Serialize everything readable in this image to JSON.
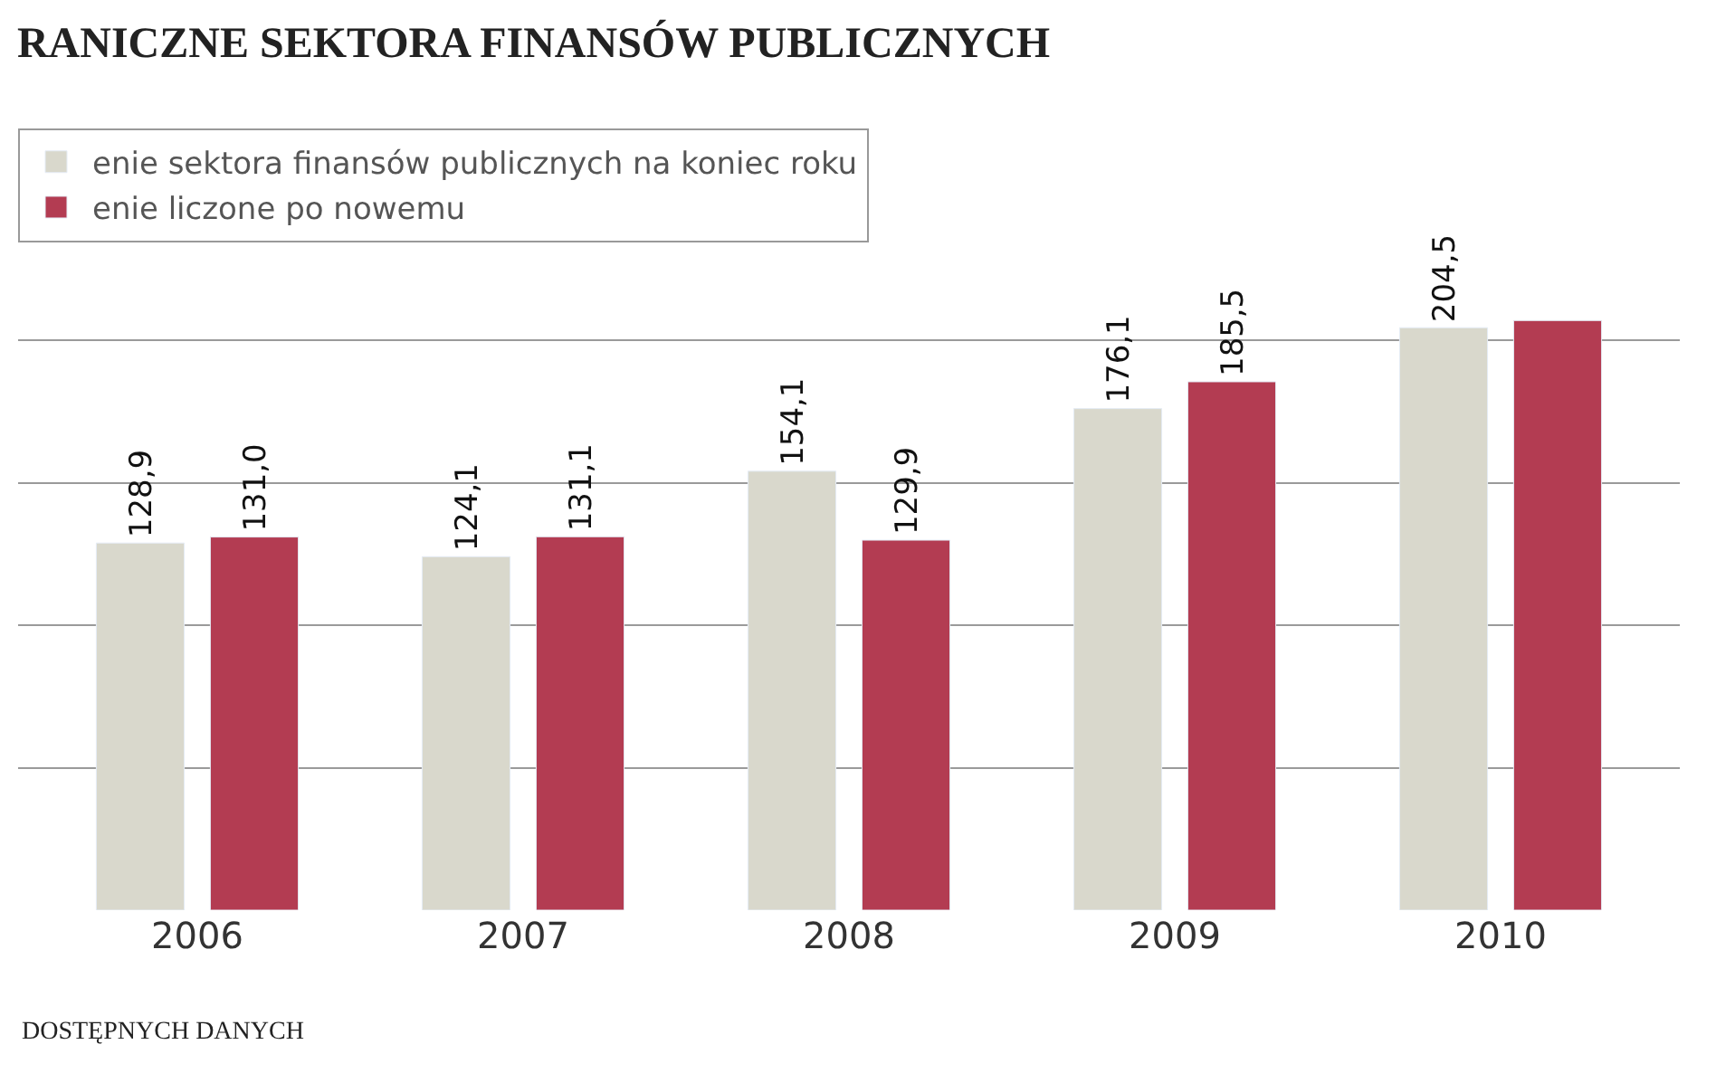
{
  "chart_data": {
    "type": "bar",
    "title": "RANICZNE SEKTORA FINANSÓW PUBLICZNYCH",
    "categories": [
      "2006",
      "2007",
      "2008",
      "2009",
      "2010"
    ],
    "series": [
      {
        "name": "enie sektora finansów publicznych na koniec roku",
        "color": "#d9d8cc",
        "values": [
          128.9,
          124.1,
          154.1,
          176.1,
          204.5
        ],
        "value_labels": [
          "128,9",
          "124,1",
          "154,1",
          "176,1",
          "204,5"
        ]
      },
      {
        "name": "enie liczone po nowemu",
        "color": "#b33c52",
        "values": [
          131.0,
          131.1,
          129.9,
          185.5,
          207
        ],
        "value_labels": [
          "131,0",
          "131,1",
          "129,9",
          "185,5",
          null
        ]
      }
    ],
    "grid": "y",
    "tick_labels": "x",
    "legend": "top left",
    "annotations": [
      "DOSTĘPNYCH DANYCH"
    ]
  }
}
